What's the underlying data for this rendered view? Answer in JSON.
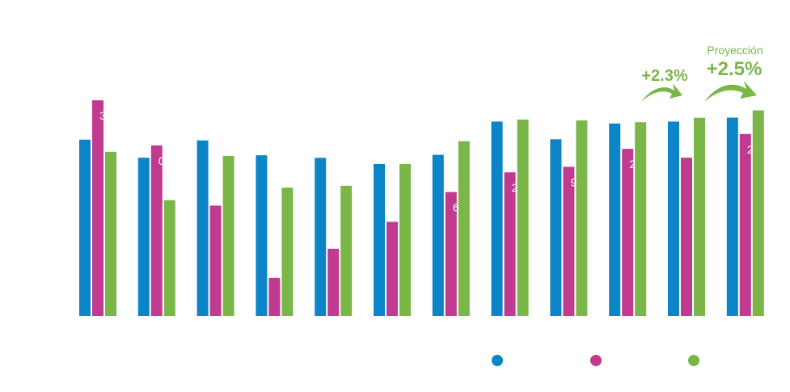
{
  "chart_data": {
    "type": "bar",
    "title": "",
    "xlabel": "",
    "ylabel": "",
    "ylim": [
      0,
      1
    ],
    "grid": false,
    "legend": "bottom-right",
    "categories": [
      "",
      "",
      "",
      "",
      "",
      "",
      "",
      "",
      "",
      "",
      "",
      ""
    ],
    "series": [
      {
        "color": "#0b85c8",
        "values": [
          0.805,
          0.723,
          0.802,
          0.734,
          0.722,
          0.694,
          0.736,
          0.888,
          0.807,
          0.879,
          0.888,
          0.906
        ]
      },
      {
        "color": "#c03a8f",
        "values": [
          0.985,
          0.779,
          0.504,
          0.174,
          0.307,
          0.43,
          0.566,
          0.656,
          0.681,
          0.763,
          0.723,
          0.831
        ]
      },
      {
        "color": "#7ab648",
        "values": [
          0.75,
          0.529,
          0.731,
          0.586,
          0.595,
          0.694,
          0.798,
          0.897,
          0.893,
          0.885,
          0.905,
          0.939
        ]
      }
    ],
    "data_labels": [
      "3",
      "0",
      "",
      "",
      "",
      "",
      "6",
      "2",
      "9",
      "2",
      "",
      "2"
    ],
    "low_labels": [
      "",
      "",
      "",
      "",
      "",
      "",
      "",
      "",
      "",
      "",
      "",
      ""
    ],
    "tail_labels": [
      "",
      "",
      "",
      "",
      "",
      "",
      "",
      "",
      "",
      "",
      "",
      ""
    ],
    "annotations": {
      "first_growth": "+2.3%",
      "projection_label": "Proyección",
      "projection_growth": "+2.5%",
      "color": "#7ab648"
    }
  }
}
